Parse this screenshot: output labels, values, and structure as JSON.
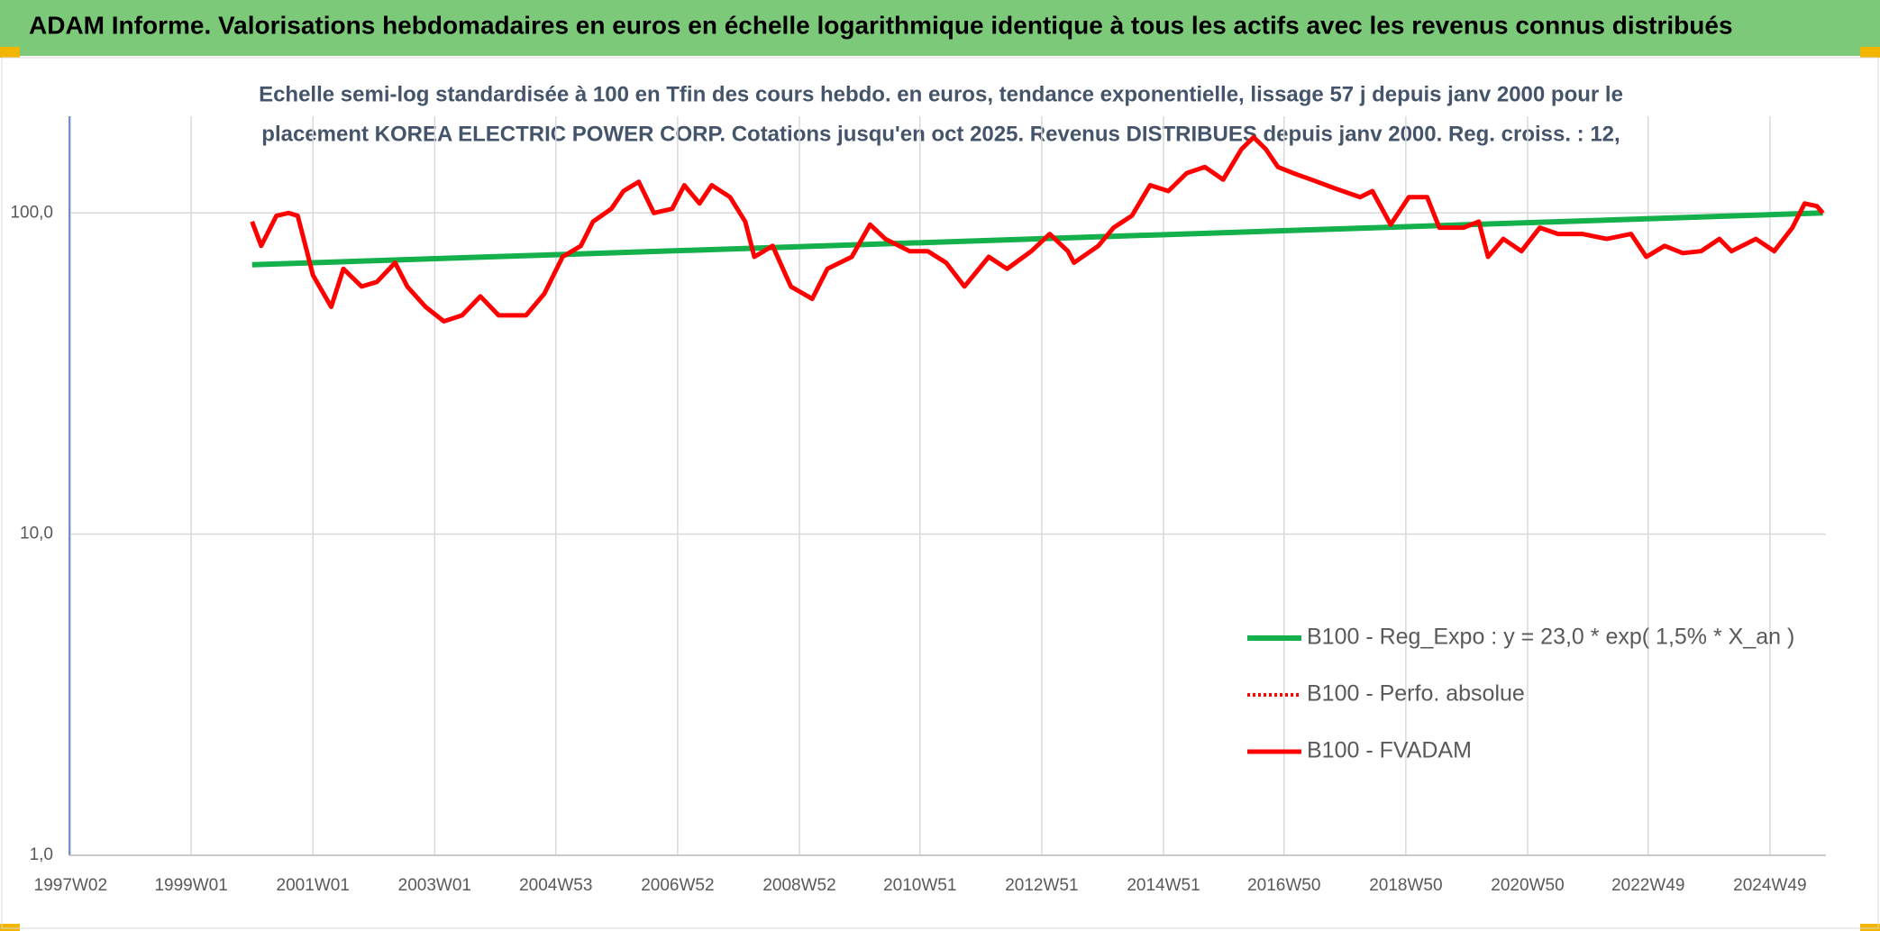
{
  "header": {
    "title": "ADAM Informe. Valorisations hebdomadaires en euros en échelle logarithmique identique à tous les actifs avec les revenus connus distribués"
  },
  "chart_data": {
    "type": "line",
    "title_lines": [
      "Echelle semi-log standardisée à 100 en Tfin des cours hebdo. en euros, tendance exponentielle, lissage 57 j depuis janv 2000 pour le",
      "placement KOREA ELECTRIC POWER CORP. Cotations jusqu'en oct 2025. Revenus DISTRIBUES depuis janv 2000. Reg. croiss. : 12,"
    ],
    "log_y": true,
    "grid": true,
    "xlim": [
      1997.0,
      2025.85
    ],
    "ylim": [
      1,
      200
    ],
    "xticks": [
      {
        "value": 1997.02,
        "label": "1997W02"
      },
      {
        "value": 1999.0,
        "label": "1999W01"
      },
      {
        "value": 2001.0,
        "label": "2001W01"
      },
      {
        "value": 2003.0,
        "label": "2003W01"
      },
      {
        "value": 2004.99,
        "label": "2004W53"
      },
      {
        "value": 2006.99,
        "label": "2006W52"
      },
      {
        "value": 2008.99,
        "label": "2008W52"
      },
      {
        "value": 2010.97,
        "label": "2010W51"
      },
      {
        "value": 2012.97,
        "label": "2012W51"
      },
      {
        "value": 2014.97,
        "label": "2014W51"
      },
      {
        "value": 2016.95,
        "label": "2016W50"
      },
      {
        "value": 2018.95,
        "label": "2018W50"
      },
      {
        "value": 2020.95,
        "label": "2020W50"
      },
      {
        "value": 2022.93,
        "label": "2022W49"
      },
      {
        "value": 2024.93,
        "label": "2024W49"
      }
    ],
    "yticks": [
      {
        "value": 1,
        "label": "1,0"
      },
      {
        "value": 10,
        "label": "10,0"
      },
      {
        "value": 100,
        "label": "100,0"
      }
    ],
    "series": [
      {
        "name": "B100 - Reg_Expo : y = 23,0 * exp( 1,5% *  X_an )",
        "color": "#13b04b",
        "width": 6,
        "dash": "solid",
        "x": [
          2000.0,
          2025.8
        ],
        "values": [
          69,
          100
        ]
      },
      {
        "name": "B100 - Perfo. absolue",
        "color": "#ff0000",
        "width": 4,
        "dash": "dotted",
        "x": [
          2000.0,
          2000.15,
          2000.4,
          2000.6,
          2000.75,
          2000.9,
          2001.0,
          2001.3,
          2001.5,
          2001.8,
          2002.05,
          2002.35,
          2002.55,
          2002.85,
          2003.15,
          2003.45,
          2003.75,
          2004.05,
          2004.5,
          2004.8,
          2005.1,
          2005.4,
          2005.6,
          2005.9,
          2006.1,
          2006.35,
          2006.6,
          2006.9,
          2007.1,
          2007.35,
          2007.55,
          2007.85,
          2008.1,
          2008.25,
          2008.55,
          2008.85,
          2009.2,
          2009.45,
          2009.85,
          2010.15,
          2010.4,
          2010.8,
          2011.1,
          2011.4,
          2011.7,
          2012.1,
          2012.4,
          2012.8,
          2013.1,
          2013.4,
          2013.5,
          2013.9,
          2014.15,
          2014.45,
          2014.75,
          2015.05,
          2015.35,
          2015.65,
          2015.95,
          2016.25,
          2016.45,
          2016.65,
          2016.85,
          2017.1,
          2017.4,
          2017.8,
          2018.2,
          2018.4,
          2018.7,
          2019.0,
          2019.3,
          2019.5,
          2019.9,
          2020.15,
          2020.3,
          2020.55,
          2020.85,
          2021.15,
          2021.45,
          2021.85,
          2022.25,
          2022.65,
          2022.9,
          2023.2,
          2023.5,
          2023.8,
          2024.1,
          2024.3,
          2024.7,
          2025.0,
          2025.3,
          2025.5,
          2025.7,
          2025.8
        ],
        "values": [
          94,
          79,
          98,
          100,
          98,
          76,
          64,
          51,
          67,
          59,
          61,
          70,
          59,
          51,
          46,
          48,
          55,
          48,
          48,
          56,
          73,
          79,
          94,
          103,
          117,
          125,
          100,
          103,
          122,
          107,
          122,
          112,
          94,
          73,
          79,
          59,
          54,
          67,
          73,
          92,
          83,
          76,
          76,
          70,
          59,
          73,
          67,
          76,
          86,
          76,
          70,
          79,
          90,
          98,
          122,
          117,
          133,
          139,
          127,
          158,
          172,
          158,
          139,
          133,
          127,
          119,
          112,
          117,
          92,
          112,
          112,
          90,
          90,
          94,
          73,
          83,
          76,
          90,
          86,
          86,
          83,
          86,
          73,
          79,
          75,
          76,
          83,
          76,
          83,
          76,
          90,
          107,
          105,
          100
        ]
      },
      {
        "name": "B100 - FVADAM",
        "color": "#ff0000",
        "width": 5,
        "dash": "solid",
        "x": [
          2000.0,
          2000.15,
          2000.4,
          2000.6,
          2000.75,
          2000.9,
          2001.0,
          2001.3,
          2001.5,
          2001.8,
          2002.05,
          2002.35,
          2002.55,
          2002.85,
          2003.15,
          2003.45,
          2003.75,
          2004.05,
          2004.5,
          2004.8,
          2005.1,
          2005.4,
          2005.6,
          2005.9,
          2006.1,
          2006.35,
          2006.6,
          2006.9,
          2007.1,
          2007.35,
          2007.55,
          2007.85,
          2008.1,
          2008.25,
          2008.55,
          2008.85,
          2009.2,
          2009.45,
          2009.85,
          2010.15,
          2010.4,
          2010.8,
          2011.1,
          2011.4,
          2011.7,
          2012.1,
          2012.4,
          2012.8,
          2013.1,
          2013.4,
          2013.5,
          2013.9,
          2014.15,
          2014.45,
          2014.75,
          2015.05,
          2015.35,
          2015.65,
          2015.95,
          2016.25,
          2016.45,
          2016.65,
          2016.85,
          2017.1,
          2017.4,
          2017.8,
          2018.2,
          2018.4,
          2018.7,
          2019.0,
          2019.3,
          2019.5,
          2019.9,
          2020.15,
          2020.3,
          2020.55,
          2020.85,
          2021.15,
          2021.45,
          2021.85,
          2022.25,
          2022.65,
          2022.9,
          2023.2,
          2023.5,
          2023.8,
          2024.1,
          2024.3,
          2024.7,
          2025.0,
          2025.3,
          2025.5,
          2025.7,
          2025.8
        ],
        "values": [
          94,
          79,
          98,
          100,
          98,
          76,
          64,
          51,
          67,
          59,
          61,
          70,
          59,
          51,
          46,
          48,
          55,
          48,
          48,
          56,
          73,
          79,
          94,
          103,
          117,
          125,
          100,
          103,
          122,
          107,
          122,
          112,
          94,
          73,
          79,
          59,
          54,
          67,
          73,
          92,
          83,
          76,
          76,
          70,
          59,
          73,
          67,
          76,
          86,
          76,
          70,
          79,
          90,
          98,
          122,
          117,
          133,
          139,
          127,
          158,
          172,
          158,
          139,
          133,
          127,
          119,
          112,
          117,
          92,
          112,
          112,
          90,
          90,
          94,
          73,
          83,
          76,
          90,
          86,
          86,
          83,
          86,
          73,
          79,
          75,
          76,
          83,
          76,
          83,
          76,
          90,
          107,
          105,
          100
        ]
      }
    ]
  }
}
